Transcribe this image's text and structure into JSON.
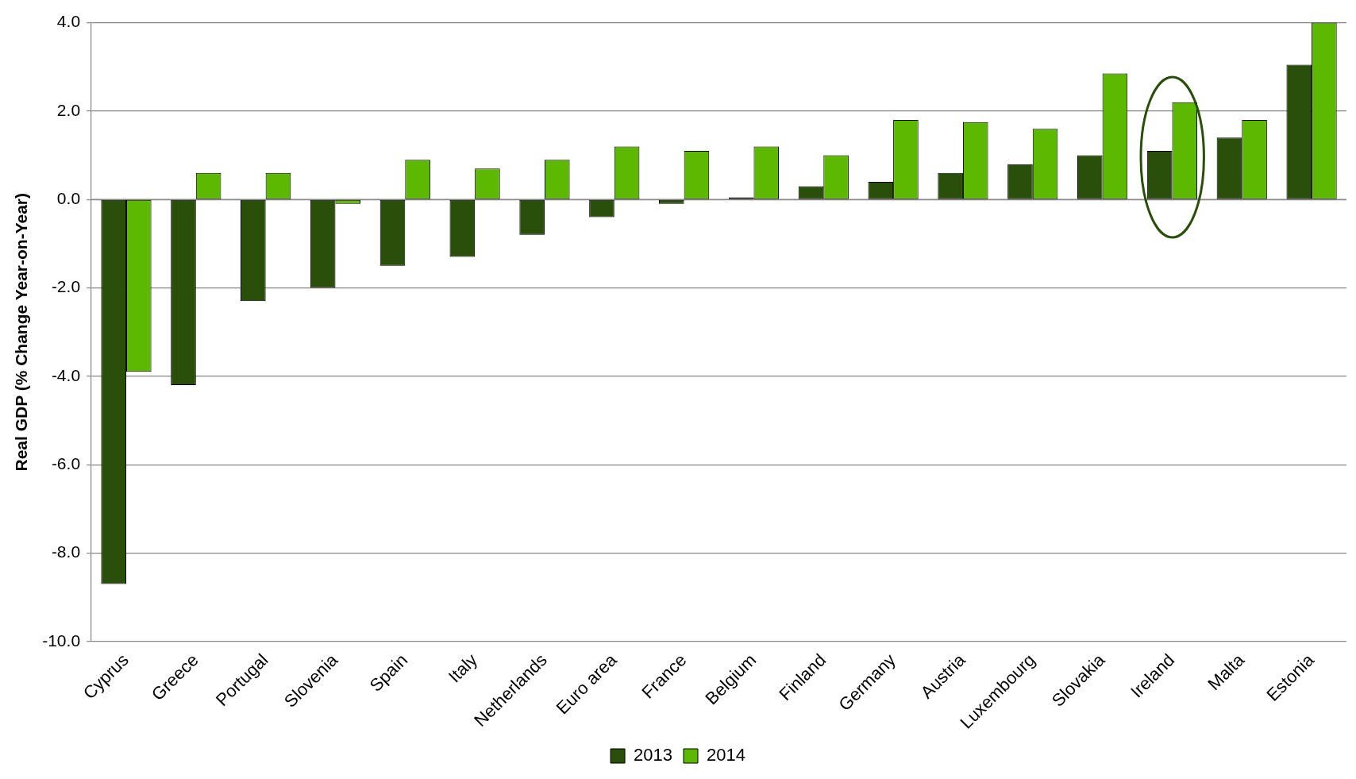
{
  "chart_data": {
    "type": "bar",
    "ylabel": "Real GDP (% Change Year-on-Year)",
    "categories": [
      "Cyprus",
      "Greece",
      "Portugal",
      "Slovenia",
      "Spain",
      "Italy",
      "Netherlands",
      "Euro area",
      "France",
      "Belgium",
      "Finland",
      "Germany",
      "Austria",
      "Luxembourg",
      "Slovakia",
      "Ireland",
      "Malta",
      "Estonia"
    ],
    "series": [
      {
        "name": "2013",
        "color": "#294f0a",
        "values": [
          -8.7,
          -4.2,
          -2.3,
          -2.0,
          -1.5,
          -1.3,
          -0.8,
          -0.4,
          -0.1,
          0.05,
          0.3,
          0.4,
          0.6,
          0.8,
          1.0,
          1.1,
          1.4,
          3.05
        ]
      },
      {
        "name": "2014",
        "color": "#5cb800",
        "values": [
          -3.9,
          0.6,
          0.6,
          -0.1,
          0.9,
          0.7,
          0.9,
          1.2,
          1.1,
          1.2,
          1.0,
          1.8,
          1.75,
          1.6,
          2.85,
          2.2,
          1.8,
          4.0
        ]
      }
    ],
    "ylim": [
      -10,
      4
    ],
    "yticks": [
      {
        "value": -10,
        "label": "-10.0"
      },
      {
        "value": -8,
        "label": "-8.0"
      },
      {
        "value": -6,
        "label": "-6.0"
      },
      {
        "value": -4,
        "label": "-4.0"
      },
      {
        "value": -2,
        "label": "-2.0"
      },
      {
        "value": 0,
        "label": "0.0"
      },
      {
        "value": 2,
        "label": "2.0"
      },
      {
        "value": 4,
        "label": "4.0"
      }
    ],
    "grid": "y",
    "legend": "bottom"
  }
}
